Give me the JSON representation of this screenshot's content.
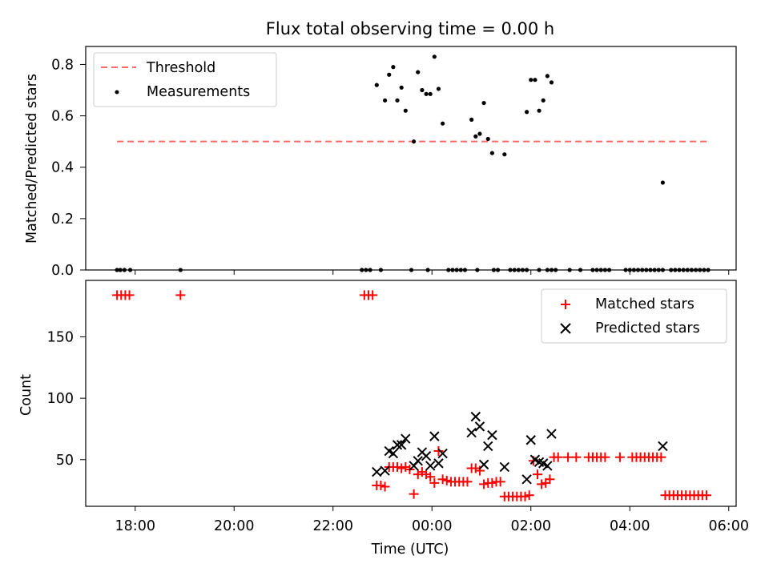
{
  "chart_data": [
    {
      "type": "scatter",
      "title": "Flux total observing time = 0.00 h",
      "ylabel": "Matched/Predicted stars",
      "xlabel": "",
      "ylim": [
        0,
        0.87
      ],
      "yticks": [
        0,
        0.2,
        0.4,
        0.6,
        0.8
      ],
      "ytick_labels": [
        "0.0",
        "0.2",
        "0.4",
        "0.6",
        "0.8"
      ],
      "xlim_hours": [
        17.0,
        6.2
      ],
      "legend_position": "top-left",
      "threshold": {
        "name": "Threshold",
        "value": 0.5,
        "x_start": "17:38",
        "x_end": "05:36",
        "color": "#ff6b6b"
      },
      "series": [
        {
          "name": "Measurements",
          "color": "#000000",
          "points": [
            [
              "17:38",
              0
            ],
            [
              "17:42",
              0
            ],
            [
              "17:47",
              0
            ],
            [
              "17:54",
              0
            ],
            [
              "18:55",
              0
            ],
            [
              "22:35",
              0
            ],
            [
              "22:40",
              0
            ],
            [
              "22:45",
              0
            ],
            [
              "22:58",
              0
            ],
            [
              "23:35",
              0
            ],
            [
              "23:55",
              0
            ],
            [
              "00:20",
              0
            ],
            [
              "00:25",
              0
            ],
            [
              "00:30",
              0
            ],
            [
              "00:35",
              0
            ],
            [
              "00:40",
              0
            ],
            [
              "00:55",
              0
            ],
            [
              "01:15",
              0
            ],
            [
              "01:20",
              0
            ],
            [
              "01:35",
              0
            ],
            [
              "01:40",
              0
            ],
            [
              "01:45",
              0
            ],
            [
              "01:50",
              0
            ],
            [
              "01:55",
              0
            ],
            [
              "02:10",
              0
            ],
            [
              "02:20",
              0
            ],
            [
              "02:25",
              0
            ],
            [
              "02:30",
              0
            ],
            [
              "02:47",
              0
            ],
            [
              "03:00",
              0
            ],
            [
              "03:15",
              0
            ],
            [
              "03:20",
              0
            ],
            [
              "03:25",
              0
            ],
            [
              "03:30",
              0
            ],
            [
              "03:35",
              0
            ],
            [
              "03:55",
              0
            ],
            [
              "04:00",
              0
            ],
            [
              "04:05",
              0
            ],
            [
              "04:10",
              0
            ],
            [
              "04:15",
              0
            ],
            [
              "04:20",
              0
            ],
            [
              "04:25",
              0
            ],
            [
              "04:30",
              0
            ],
            [
              "04:35",
              0
            ],
            [
              "04:40",
              0
            ],
            [
              "04:50",
              0
            ],
            [
              "04:55",
              0
            ],
            [
              "05:00",
              0
            ],
            [
              "05:05",
              0
            ],
            [
              "05:10",
              0
            ],
            [
              "05:15",
              0
            ],
            [
              "05:20",
              0
            ],
            [
              "05:25",
              0
            ],
            [
              "05:30",
              0
            ],
            [
              "05:35",
              0
            ],
            [
              "22:53",
              0.72
            ],
            [
              "23:03",
              0.66
            ],
            [
              "23:08",
              0.76
            ],
            [
              "23:13",
              0.79
            ],
            [
              "23:18",
              0.66
            ],
            [
              "23:23",
              0.71
            ],
            [
              "23:28",
              0.62
            ],
            [
              "23:38",
              0.5
            ],
            [
              "23:43",
              0.77
            ],
            [
              "23:48",
              0.7
            ],
            [
              "23:53",
              0.685
            ],
            [
              "23:58",
              0.685
            ],
            [
              "00:03",
              0.83
            ],
            [
              "00:08",
              0.705
            ],
            [
              "00:13",
              0.57
            ],
            [
              "00:48",
              0.585
            ],
            [
              "00:53",
              0.52
            ],
            [
              "00:58",
              0.53
            ],
            [
              "01:03",
              0.65
            ],
            [
              "01:08",
              0.51
            ],
            [
              "01:13",
              0.455
            ],
            [
              "01:28",
              0.45
            ],
            [
              "01:55",
              0.615
            ],
            [
              "02:00",
              0.74
            ],
            [
              "02:05",
              0.74
            ],
            [
              "02:10",
              0.62
            ],
            [
              "02:15",
              0.66
            ],
            [
              "02:20",
              0.755
            ],
            [
              "02:25",
              0.73
            ],
            [
              "04:40",
              0.34
            ]
          ]
        }
      ]
    },
    {
      "type": "scatter",
      "xlabel": "Time (UTC)",
      "ylabel": "Count",
      "ylim": [
        12,
        196
      ],
      "yticks": [
        50,
        100,
        150
      ],
      "ytick_labels": [
        "50",
        "100",
        "150"
      ],
      "xlim_hours": [
        17.0,
        6.2
      ],
      "xtick_labels": [
        "18:00",
        "20:00",
        "22:00",
        "00:00",
        "02:00",
        "04:00",
        "06:00"
      ],
      "legend_position": "top-right",
      "series": [
        {
          "name": "Matched stars",
          "color": "#ff0000",
          "marker": "plus",
          "points": [
            [
              "17:38",
              184
            ],
            [
              "17:43",
              184
            ],
            [
              "17:48",
              184
            ],
            [
              "17:53",
              184
            ],
            [
              "18:55",
              184
            ],
            [
              "22:38",
              184
            ],
            [
              "22:43",
              184
            ],
            [
              "22:48",
              184
            ],
            [
              "22:53",
              29
            ],
            [
              "22:58",
              29
            ],
            [
              "23:03",
              28
            ],
            [
              "23:08",
              44
            ],
            [
              "23:13",
              44
            ],
            [
              "23:18",
              44
            ],
            [
              "23:23",
              43
            ],
            [
              "23:28",
              44
            ],
            [
              "23:33",
              42
            ],
            [
              "23:38",
              22
            ],
            [
              "23:43",
              38
            ],
            [
              "23:48",
              40
            ],
            [
              "23:53",
              38
            ],
            [
              "23:58",
              36
            ],
            [
              "00:03",
              31
            ],
            [
              "00:08",
              57
            ],
            [
              "00:13",
              34
            ],
            [
              "00:18",
              33
            ],
            [
              "00:23",
              32
            ],
            [
              "00:28",
              32
            ],
            [
              "00:33",
              32
            ],
            [
              "00:38",
              32
            ],
            [
              "00:43",
              32
            ],
            [
              "00:48",
              43
            ],
            [
              "00:53",
              43
            ],
            [
              "00:58",
              41
            ],
            [
              "01:03",
              30
            ],
            [
              "01:08",
              31
            ],
            [
              "01:13",
              31
            ],
            [
              "01:18",
              32
            ],
            [
              "01:23",
              32
            ],
            [
              "01:28",
              20
            ],
            [
              "01:33",
              20
            ],
            [
              "01:38",
              20
            ],
            [
              "01:43",
              20
            ],
            [
              "01:48",
              20
            ],
            [
              "01:53",
              20
            ],
            [
              "01:58",
              21
            ],
            [
              "02:03",
              49
            ],
            [
              "02:08",
              38
            ],
            [
              "02:13",
              30
            ],
            [
              "02:18",
              31
            ],
            [
              "02:23",
              34
            ],
            [
              "02:28",
              52
            ],
            [
              "02:33",
              52
            ],
            [
              "02:45",
              52
            ],
            [
              "02:55",
              52
            ],
            [
              "03:10",
              52
            ],
            [
              "03:15",
              52
            ],
            [
              "03:20",
              52
            ],
            [
              "03:25",
              52
            ],
            [
              "03:30",
              52
            ],
            [
              "03:48",
              52
            ],
            [
              "04:03",
              52
            ],
            [
              "04:08",
              52
            ],
            [
              "04:13",
              52
            ],
            [
              "04:18",
              52
            ],
            [
              "04:23",
              52
            ],
            [
              "04:28",
              52
            ],
            [
              "04:33",
              52
            ],
            [
              "04:38",
              52
            ],
            [
              "04:43",
              21
            ],
            [
              "04:48",
              21
            ],
            [
              "04:53",
              21
            ],
            [
              "04:58",
              21
            ],
            [
              "05:03",
              21
            ],
            [
              "05:08",
              21
            ],
            [
              "05:13",
              21
            ],
            [
              "05:18",
              21
            ],
            [
              "05:23",
              21
            ],
            [
              "05:28",
              21
            ],
            [
              "05:33",
              21
            ]
          ]
        },
        {
          "name": "Predicted stars",
          "color": "#000000",
          "marker": "x",
          "points": [
            [
              "22:53",
              40
            ],
            [
              "23:03",
              41
            ],
            [
              "23:08",
              57
            ],
            [
              "23:13",
              55
            ],
            [
              "23:18",
              62
            ],
            [
              "23:23",
              62
            ],
            [
              "23:28",
              67
            ],
            [
              "23:38",
              45
            ],
            [
              "23:43",
              49
            ],
            [
              "23:48",
              56
            ],
            [
              "23:53",
              53
            ],
            [
              "23:58",
              45
            ],
            [
              "00:03",
              69
            ],
            [
              "00:08",
              47
            ],
            [
              "00:13",
              55
            ],
            [
              "00:48",
              72
            ],
            [
              "00:53",
              85
            ],
            [
              "00:58",
              77
            ],
            [
              "01:03",
              46
            ],
            [
              "01:08",
              61
            ],
            [
              "01:13",
              70
            ],
            [
              "01:28",
              44
            ],
            [
              "01:55",
              34
            ],
            [
              "02:00",
              66
            ],
            [
              "02:05",
              50
            ],
            [
              "02:10",
              48
            ],
            [
              "02:15",
              47
            ],
            [
              "02:20",
              45
            ],
            [
              "02:25",
              71
            ],
            [
              "04:40",
              61
            ]
          ]
        }
      ]
    }
  ]
}
